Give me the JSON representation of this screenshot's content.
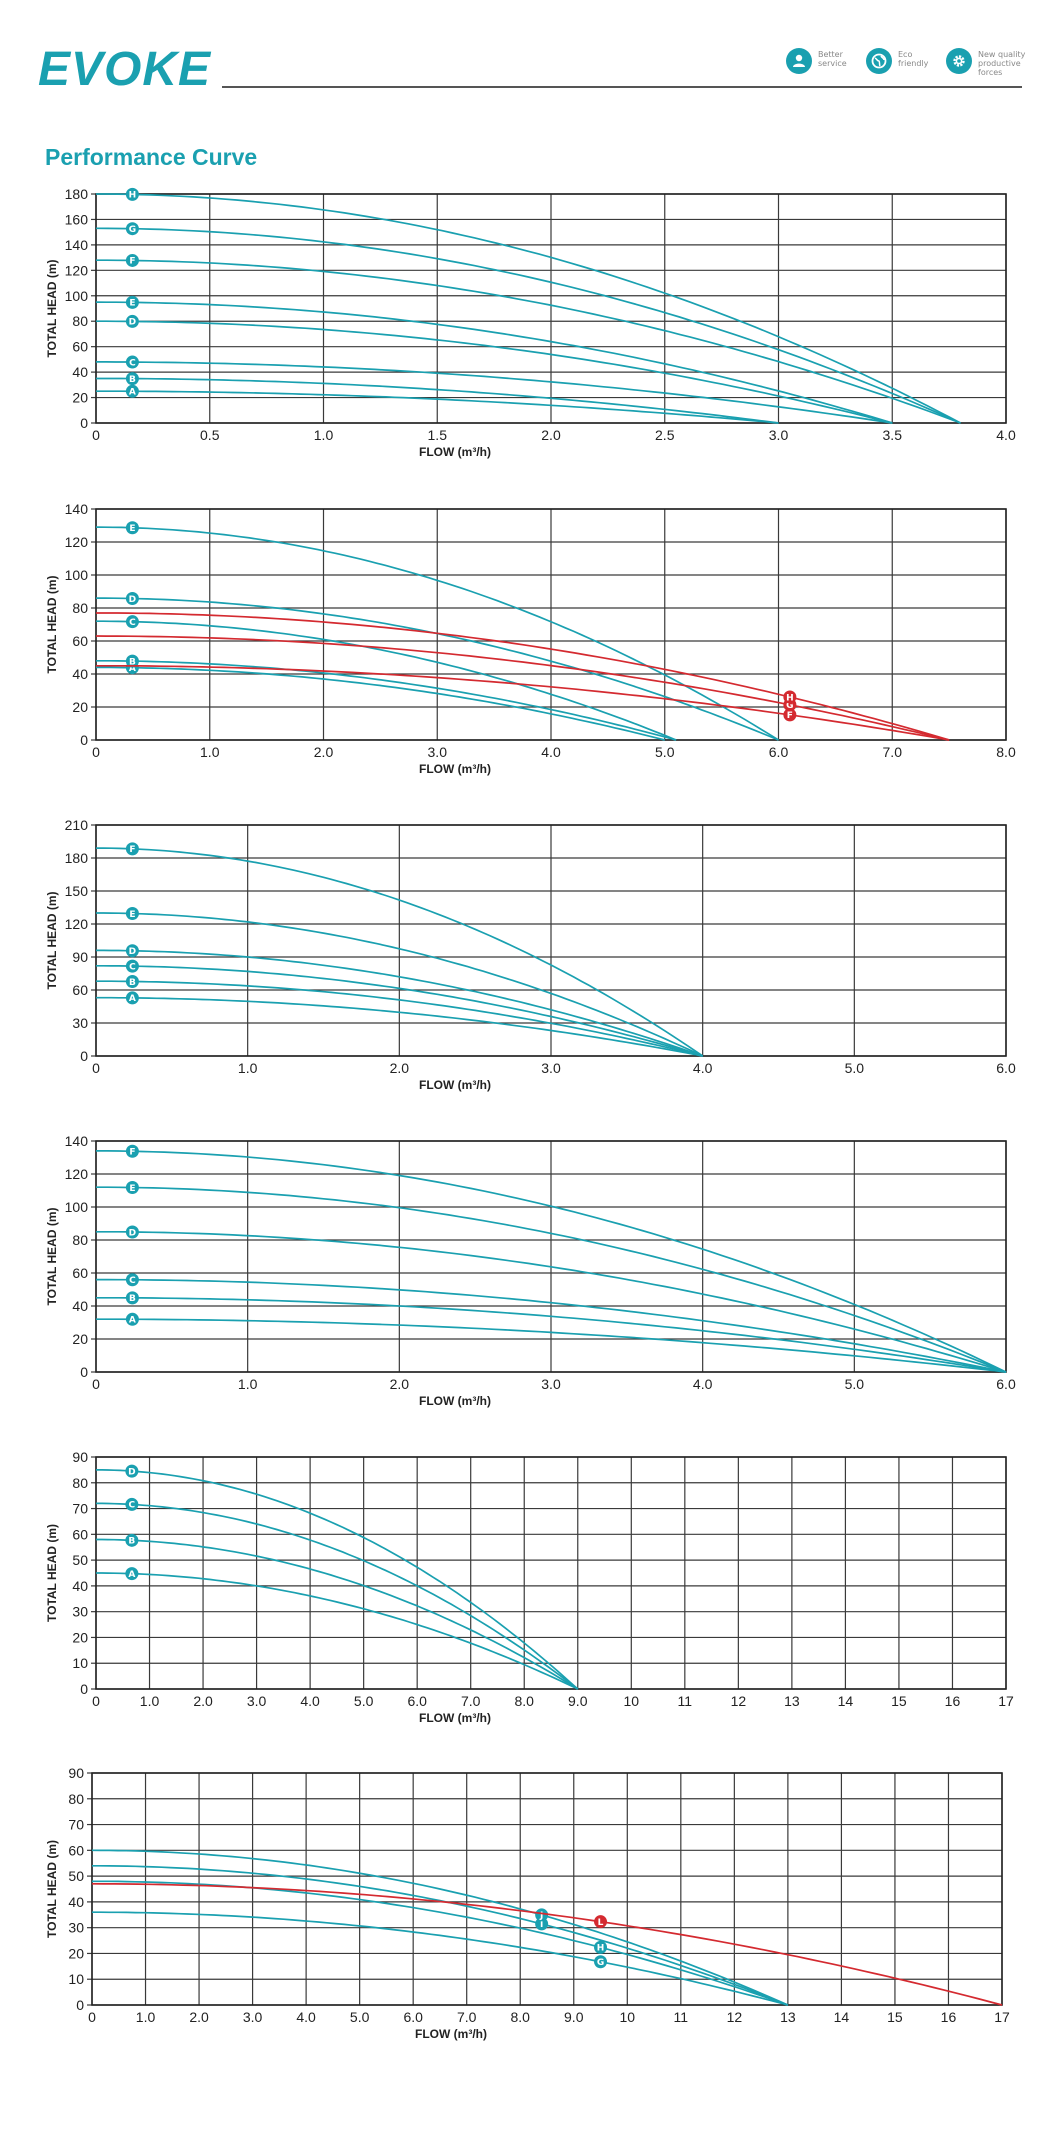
{
  "brand": {
    "logo": "EVOKE",
    "accent": "#1aa0b0",
    "curve_red": "#d42a30"
  },
  "features": [
    {
      "icon": "person-service-icon",
      "line1": "Better",
      "line2": "service",
      "line3": ""
    },
    {
      "icon": "eco-globe-icon",
      "line1": "Eco",
      "line2": "friendly",
      "line3": ""
    },
    {
      "icon": "gear-icon",
      "line1": "New quality",
      "line2": "productive",
      "line3": "forces"
    }
  ],
  "page_title": "Performance Curve",
  "chart_data": [
    {
      "type": "line",
      "xlabel": "FLOW (m³/h)",
      "ylabel": "TOTAL  HEAD (m)",
      "xlim": [
        0,
        4.0
      ],
      "ylim": [
        0,
        180
      ],
      "xticks": [
        0,
        0.5,
        1.0,
        1.5,
        2.0,
        2.5,
        3.0,
        3.5,
        4.0
      ],
      "xtick_labels": [
        "0",
        "0.5",
        "1.0",
        "1.5",
        "2.0",
        "2.5",
        "3.0",
        "3.5",
        "4.0"
      ],
      "yticks": [
        0,
        20,
        40,
        60,
        80,
        100,
        120,
        140,
        160,
        180
      ],
      "ytick_labels": [
        "0",
        "20",
        "40",
        "60",
        "80",
        "100",
        "120",
        "140",
        "160",
        "180"
      ],
      "grid": true,
      "series": [
        {
          "name": "A",
          "color": "teal",
          "shutoff_head": 25,
          "max_flow": 3.0,
          "label_x": 0.16
        },
        {
          "name": "B",
          "color": "teal",
          "shutoff_head": 35,
          "max_flow": 3.0,
          "label_x": 0.16
        },
        {
          "name": "C",
          "color": "teal",
          "shutoff_head": 48,
          "max_flow": 3.5,
          "label_x": 0.16
        },
        {
          "name": "D",
          "color": "teal",
          "shutoff_head": 80,
          "max_flow": 3.5,
          "label_x": 0.16
        },
        {
          "name": "E",
          "color": "teal",
          "shutoff_head": 95,
          "max_flow": 3.5,
          "label_x": 0.16
        },
        {
          "name": "F",
          "color": "teal",
          "shutoff_head": 128,
          "max_flow": 3.8,
          "label_x": 0.16
        },
        {
          "name": "G",
          "color": "teal",
          "shutoff_head": 153,
          "max_flow": 3.8,
          "label_x": 0.16
        },
        {
          "name": "H",
          "color": "teal",
          "shutoff_head": 180,
          "max_flow": 3.8,
          "label_x": 0.16
        }
      ]
    },
    {
      "type": "line",
      "xlabel": "FLOW (m³/h)",
      "ylabel": "TOTAL  HEAD (m)",
      "xlim": [
        0,
        8.0
      ],
      "ylim": [
        0,
        140
      ],
      "xticks": [
        0,
        1,
        2,
        3,
        4,
        5,
        6,
        7,
        8
      ],
      "xtick_labels": [
        "0",
        "1.0",
        "2.0",
        "3.0",
        "4.0",
        "5.0",
        "6.0",
        "7.0",
        "8.0"
      ],
      "yticks": [
        0,
        20,
        40,
        60,
        80,
        100,
        120,
        140
      ],
      "ytick_labels": [
        "0",
        "20",
        "40",
        "60",
        "80",
        "100",
        "120",
        "140"
      ],
      "grid": true,
      "series": [
        {
          "name": "A",
          "color": "teal",
          "shutoff_head": 44,
          "max_flow": 5.0,
          "label_x": 0.32
        },
        {
          "name": "B",
          "color": "teal",
          "shutoff_head": 48,
          "max_flow": 5.1,
          "label_x": 0.32
        },
        {
          "name": "C",
          "color": "teal",
          "shutoff_head": 72,
          "max_flow": 5.1,
          "label_x": 0.32
        },
        {
          "name": "D",
          "color": "teal",
          "shutoff_head": 86,
          "max_flow": 6.0,
          "label_x": 0.32
        },
        {
          "name": "E",
          "color": "teal",
          "shutoff_head": 129,
          "max_flow": 6.0,
          "label_x": 0.32
        },
        {
          "name": "F",
          "color": "red",
          "shutoff_head": 45,
          "max_flow": 7.5,
          "label_x": 6.1
        },
        {
          "name": "G",
          "color": "red",
          "shutoff_head": 63,
          "max_flow": 7.5,
          "label_x": 6.1
        },
        {
          "name": "H",
          "color": "red",
          "shutoff_head": 77,
          "max_flow": 7.5,
          "label_x": 6.1
        }
      ]
    },
    {
      "type": "line",
      "xlabel": "FLOW (m³/h)",
      "ylabel": "TOTAL  HEAD (m)",
      "xlim": [
        0,
        6.0
      ],
      "ylim": [
        0,
        210
      ],
      "xticks": [
        0,
        1,
        2,
        3,
        4,
        5,
        6
      ],
      "xtick_labels": [
        "0",
        "1.0",
        "2.0",
        "3.0",
        "4.0",
        "5.0",
        "6.0"
      ],
      "yticks": [
        0,
        30,
        60,
        90,
        120,
        150,
        180,
        210
      ],
      "ytick_labels": [
        "0",
        "30",
        "60",
        "90",
        "120",
        "150",
        "180",
        "210"
      ],
      "grid": true,
      "series": [
        {
          "name": "A",
          "color": "teal",
          "shutoff_head": 53,
          "max_flow": 4.0,
          "label_x": 0.24
        },
        {
          "name": "B",
          "color": "teal",
          "shutoff_head": 68,
          "max_flow": 4.0,
          "label_x": 0.24
        },
        {
          "name": "C",
          "color": "teal",
          "shutoff_head": 82,
          "max_flow": 4.0,
          "label_x": 0.24
        },
        {
          "name": "D",
          "color": "teal",
          "shutoff_head": 96,
          "max_flow": 4.0,
          "label_x": 0.24
        },
        {
          "name": "E",
          "color": "teal",
          "shutoff_head": 130,
          "max_flow": 4.0,
          "label_x": 0.24
        },
        {
          "name": "F",
          "color": "teal",
          "shutoff_head": 189,
          "max_flow": 4.0,
          "label_x": 0.24
        }
      ]
    },
    {
      "type": "line",
      "xlabel": "FLOW (m³/h)",
      "ylabel": "TOTAL  HEAD (m)",
      "xlim": [
        0,
        6.0
      ],
      "ylim": [
        0,
        140
      ],
      "xticks": [
        0,
        1,
        2,
        3,
        4,
        5,
        6
      ],
      "xtick_labels": [
        "0",
        "1.0",
        "2.0",
        "3.0",
        "4.0",
        "5.0",
        "6.0"
      ],
      "yticks": [
        0,
        20,
        40,
        60,
        80,
        100,
        120,
        140
      ],
      "ytick_labels": [
        "0",
        "20",
        "40",
        "60",
        "80",
        "100",
        "120",
        "140"
      ],
      "grid": true,
      "series": [
        {
          "name": "A",
          "color": "teal",
          "shutoff_head": 32,
          "max_flow": 6.0,
          "label_x": 0.24
        },
        {
          "name": "B",
          "color": "teal",
          "shutoff_head": 45,
          "max_flow": 6.0,
          "label_x": 0.24
        },
        {
          "name": "C",
          "color": "teal",
          "shutoff_head": 56,
          "max_flow": 6.0,
          "label_x": 0.24
        },
        {
          "name": "D",
          "color": "teal",
          "shutoff_head": 85,
          "max_flow": 6.0,
          "label_x": 0.24
        },
        {
          "name": "E",
          "color": "teal",
          "shutoff_head": 112,
          "max_flow": 6.0,
          "label_x": 0.24
        },
        {
          "name": "F",
          "color": "teal",
          "shutoff_head": 134,
          "max_flow": 6.0,
          "label_x": 0.24
        }
      ]
    },
    {
      "type": "line",
      "xlabel": "FLOW (m³/h)",
      "ylabel": "TOTAL  HEAD (m)",
      "xlim": [
        0,
        17
      ],
      "ylim": [
        0,
        90
      ],
      "xticks": [
        0,
        1,
        2,
        3,
        4,
        5,
        6,
        7,
        8,
        9,
        10,
        11,
        12,
        13,
        14,
        15,
        16,
        17
      ],
      "xtick_labels": [
        "0",
        "1.0",
        "2.0",
        "3.0",
        "4.0",
        "5.0",
        "6.0",
        "7.0",
        "8.0",
        "9.0",
        "10",
        "11",
        "12",
        "13",
        "14",
        "15",
        "16",
        "17"
      ],
      "yticks": [
        0,
        10,
        20,
        30,
        40,
        50,
        60,
        70,
        80,
        90
      ],
      "ytick_labels": [
        "0",
        "10",
        "20",
        "30",
        "40",
        "50",
        "60",
        "70",
        "80",
        "90"
      ],
      "grid": true,
      "series": [
        {
          "name": "A",
          "color": "teal",
          "shutoff_head": 45,
          "max_flow": 9.0,
          "label_x": 0.67
        },
        {
          "name": "B",
          "color": "teal",
          "shutoff_head": 58,
          "max_flow": 9.0,
          "label_x": 0.67
        },
        {
          "name": "C",
          "color": "teal",
          "shutoff_head": 72,
          "max_flow": 9.0,
          "label_x": 0.67
        },
        {
          "name": "D",
          "color": "teal",
          "shutoff_head": 85,
          "max_flow": 9.0,
          "label_x": 0.67
        }
      ]
    },
    {
      "type": "line",
      "xlabel": "FLOW (m³/h)",
      "ylabel": "TOTAL  HEAD (m)",
      "xlim": [
        0,
        17
      ],
      "ylim": [
        0,
        90
      ],
      "xticks": [
        0,
        1,
        2,
        3,
        4,
        5,
        6,
        7,
        8,
        9,
        10,
        11,
        12,
        13,
        14,
        15,
        16,
        17
      ],
      "xtick_labels": [
        "0",
        "1.0",
        "2.0",
        "3.0",
        "4.0",
        "5.0",
        "6.0",
        "7.0",
        "8.0",
        "9.0",
        "10",
        "11",
        "12",
        "13",
        "14",
        "15",
        "16",
        "17"
      ],
      "yticks": [
        0,
        10,
        20,
        30,
        40,
        50,
        60,
        70,
        80,
        90
      ],
      "ytick_labels": [
        "0",
        "10",
        "20",
        "30",
        "40",
        "50",
        "60",
        "70",
        "80",
        "90"
      ],
      "grid": true,
      "series": [
        {
          "name": "G",
          "color": "teal",
          "shutoff_head": 36,
          "max_flow": 13.0,
          "label_x": 9.5
        },
        {
          "name": "H",
          "color": "teal",
          "shutoff_head": 48,
          "max_flow": 13.0,
          "label_x": 9.5
        },
        {
          "name": "I",
          "color": "teal",
          "shutoff_head": 54,
          "max_flow": 13.0,
          "label_x": 8.4
        },
        {
          "name": "J",
          "color": "teal",
          "shutoff_head": 60,
          "max_flow": 13.0,
          "label_x": 8.4
        },
        {
          "name": "L",
          "color": "red",
          "shutoff_head": 47,
          "max_flow": 17.0,
          "label_x": 9.5
        }
      ]
    }
  ]
}
